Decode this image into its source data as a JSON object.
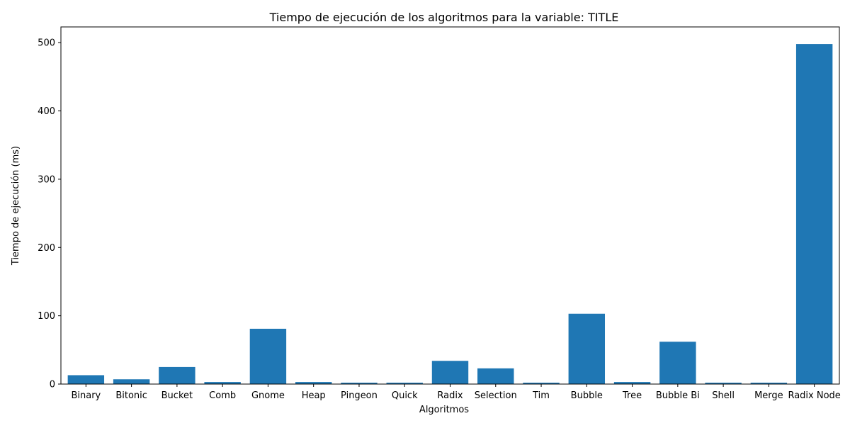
{
  "chart_data": {
    "type": "bar",
    "title": "Tiempo de ejecución de los algoritmos para la variable: TITLE",
    "xlabel": "Algoritmos",
    "ylabel": "Tiempo de ejecución (ms)",
    "categories": [
      "Binary",
      "Bitonic",
      "Bucket",
      "Comb",
      "Gnome",
      "Heap",
      "Pingeon",
      "Quick",
      "Radix",
      "Selection",
      "Tim",
      "Bubble",
      "Tree",
      "Bubble Bi",
      "Shell",
      "Merge",
      "Radix Node"
    ],
    "values": [
      13,
      7,
      25,
      3,
      81,
      3,
      2,
      2,
      34,
      23,
      2,
      103,
      3,
      62,
      2,
      2,
      498
    ],
    "ylim": [
      0,
      523
    ],
    "yticks": [
      0,
      100,
      200,
      300,
      400,
      500
    ],
    "grid": false,
    "legend": "none",
    "bar_color": "#1f77b4"
  }
}
